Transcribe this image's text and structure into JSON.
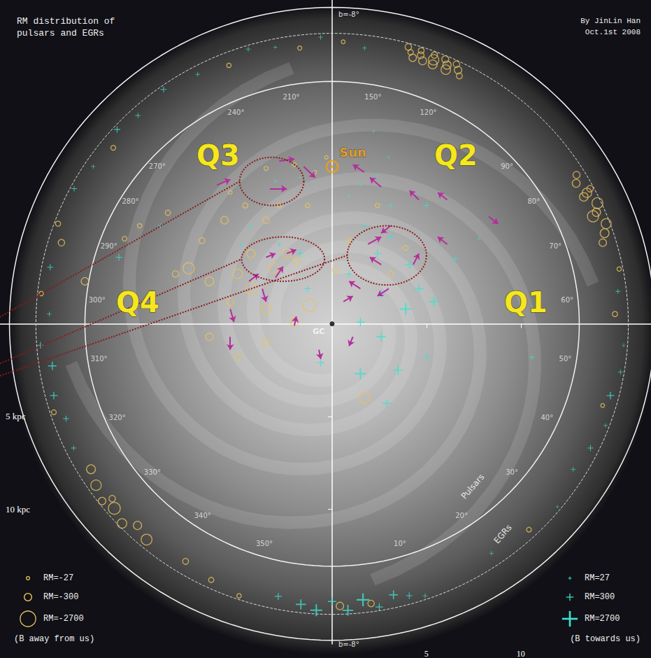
{
  "chart_data": {
    "type": "scatter",
    "title": "RM distribution of pulsars and EGRs",
    "credit": [
      "By JinLin Han",
      "Oct.1st 2008"
    ],
    "xlim": [
      -17.6,
      16.9
    ],
    "xticks": [
      5,
      10
    ],
    "ylim": [
      -17.5,
      17.3
    ],
    "yticks": [
      {
        "value": 5,
        "label": "5 kpc"
      },
      {
        "value": 10,
        "label": "10 kpc"
      }
    ],
    "grid": false,
    "legend": "bottom",
    "annotations": {
      "quadrants": [
        "Q1",
        "Q2",
        "Q3",
        "Q4"
      ],
      "rings": [
        "Pulsars",
        "EGRs"
      ],
      "latitude": [
        "b=-8°",
        "b=-8°"
      ]
    },
    "sun": {
      "label": "Sun",
      "x": 0,
      "y": -8.5
    },
    "gc": {
      "label": "GC",
      "x": 0,
      "y": 0
    },
    "longitude_labels": [
      {
        "value": 10,
        "label": "10°"
      },
      {
        "value": 20,
        "label": "20°"
      },
      {
        "value": 30,
        "label": "30°"
      },
      {
        "value": 40,
        "label": "40°"
      },
      {
        "value": 50,
        "label": "50°"
      },
      {
        "value": 60,
        "label": "60°"
      },
      {
        "value": 70,
        "label": "70°"
      },
      {
        "value": 80,
        "label": "80°"
      },
      {
        "value": 90,
        "label": "90°"
      },
      {
        "value": 120,
        "label": "120°"
      },
      {
        "value": 150,
        "label": "150°"
      },
      {
        "value": 210,
        "label": "210°"
      },
      {
        "value": 240,
        "label": "240°"
      },
      {
        "value": 270,
        "label": "270°"
      },
      {
        "value": 280,
        "label": "280°"
      },
      {
        "value": 290,
        "label": "290°"
      },
      {
        "value": 300,
        "label": "300°"
      },
      {
        "value": 310,
        "label": "310°"
      },
      {
        "value": 320,
        "label": "320°"
      },
      {
        "value": 330,
        "label": "330°"
      },
      {
        "value": 340,
        "label": "340°"
      },
      {
        "value": 350,
        "label": "350°"
      }
    ],
    "pulsars": {
      "x": [
        2.4,
        4.1,
        3.1,
        5.0,
        3.1,
        1.7,
        4.6,
        5.4,
        2.6,
        1.5,
        1.5,
        3.5,
        10.6,
        5.0,
        0.9,
        2.4,
        1.5,
        0.9,
        2.6,
        3.9,
        2.2,
        3.0,
        -1.7,
        -1.3,
        -2.8,
        -4.3,
        -3.0,
        -1.7,
        -4.8,
        -0.6,
        2.9,
        -11.3,
        -9.1,
        6.5,
        7.8,
        -2.4,
        -3.1,
        -1.9,
        -4.3,
        -5.0,
        -5.4,
        -4.3,
        -6.5,
        -7.6,
        -8.3,
        -6.9,
        -5.7,
        -4.6,
        -3.5,
        -2.8,
        -1.3,
        -2.0,
        -3.5,
        -5.4,
        -8.7,
        -10.2,
        -11.0,
        -13.1,
        -3.5,
        -2.0,
        1.7,
        -1.2,
        0.2,
        0.9,
        3.1,
        3.9,
        2.4,
        -6.5,
        -5.0,
        -3.5,
        -0.3,
        -0.9
      ],
      "y": [
        -3.8,
        -3.2,
        -4.7,
        -6.4,
        -6.4,
        -5.3,
        -1.9,
        -1.2,
        -1.6,
        -0.1,
        2.7,
        2.5,
        1.8,
        1.8,
        -2.7,
        -8.0,
        -7.5,
        -6.9,
        0.7,
        -0.8,
        -10.4,
        -9.0,
        -3.8,
        -1.9,
        -4.3,
        -5.3,
        -7.7,
        -7.9,
        -4.3,
        2.1,
        4.3,
        -3.6,
        -5.3,
        -3.5,
        -4.6,
        -3.8,
        -3.0,
        -3.4,
        -3.8,
        -2.7,
        -1.2,
        -1.9,
        -2.3,
        -3.0,
        -2.7,
        -4.5,
        -5.6,
        -6.4,
        -5.6,
        -6.4,
        -6.4,
        -8.6,
        -8.4,
        -7.1,
        -6.0,
        -5.3,
        -4.6,
        -2.3,
        -0.8,
        -0.1,
        4.0,
        -1.0,
        -2.9,
        -4.5,
        -2.7,
        -4.1,
        -6.4,
        0.7,
        1.8,
        1.0,
        -9.0,
        -8.2
      ],
      "rm": [
        300,
        400,
        200,
        150,
        100,
        150,
        500,
        800,
        300,
        400,
        1000,
        700,
        100,
        200,
        200,
        50,
        40,
        60,
        600,
        1200,
        30,
        40,
        300,
        200,
        100,
        80,
        60,
        40,
        100,
        300,
        400,
        200,
        80,
        150,
        60,
        -500,
        -700,
        -300,
        -400,
        -600,
        -300,
        -900,
        -500,
        -1000,
        -200,
        -150,
        -300,
        -100,
        -200,
        -80,
        -60,
        -40,
        -50,
        -40,
        -100,
        -60,
        -80,
        -300,
        -700,
        -400,
        -1000,
        -1500,
        -200,
        -100,
        -100,
        -80,
        -60,
        -300,
        -200,
        -400,
        -30,
        -30
      ]
    },
    "egrs": {
      "longitude": [
        126,
        128,
        130,
        131,
        132,
        134,
        136,
        137,
        138,
        140,
        142,
        143,
        144,
        146,
        148,
        74,
        76,
        78,
        79,
        80,
        82,
        83,
        84,
        85,
        86,
        88,
        58,
        62,
        66,
        70,
        38,
        42,
        46,
        48,
        50,
        54,
        22,
        28,
        33,
        353,
        356,
        358,
        0,
        1,
        2,
        4,
        5,
        6,
        8,
        10,
        12,
        340,
        344,
        348,
        322,
        324,
        326,
        327,
        328,
        330,
        332,
        334,
        302,
        306,
        310,
        312,
        314,
        318,
        282,
        286,
        290,
        294,
        298,
        255,
        260,
        265,
        270,
        275,
        165,
        175,
        185,
        195,
        205,
        215,
        225,
        235,
        245
      ],
      "rm": [
        -150,
        -300,
        -200,
        -600,
        -400,
        -250,
        -500,
        -800,
        -180,
        -350,
        -220,
        -150,
        -300,
        -120,
        -200,
        -300,
        -500,
        -700,
        -1000,
        -400,
        -900,
        -450,
        -600,
        -200,
        -350,
        -250,
        50,
        -100,
        80,
        -60,
        80,
        150,
        60,
        -40,
        300,
        100,
        60,
        -80,
        40,
        250,
        700,
        1200,
        400,
        -300,
        900,
        1500,
        -200,
        300,
        500,
        200,
        100,
        -150,
        -100,
        -60,
        -500,
        -800,
        -300,
        -200,
        -1200,
        -600,
        -400,
        -900,
        200,
        400,
        300,
        -80,
        150,
        100,
        -100,
        -200,
        150,
        -60,
        80,
        100,
        200,
        -80,
        60,
        120,
        60,
        -40,
        80,
        -50,
        40,
        100,
        -60,
        80,
        150
      ]
    },
    "field_arrows": {
      "color": "#b42e9c",
      "segments": [
        [
          -6.1,
          -7.5,
          -5.4,
          -7.8
        ],
        [
          -3.3,
          -7.3,
          -2.4,
          -7.3
        ],
        [
          -2.8,
          -8.8,
          -2.0,
          -8.9
        ],
        [
          -1.5,
          -8.5,
          -0.9,
          -7.9
        ],
        [
          1.7,
          -8.2,
          1.1,
          -8.6
        ],
        [
          2.6,
          -7.4,
          2.0,
          -7.9
        ],
        [
          4.6,
          -6.7,
          4.1,
          -7.2
        ],
        [
          6.1,
          -6.7,
          5.6,
          -7.1
        ],
        [
          8.3,
          -5.8,
          8.8,
          -5.4
        ],
        [
          3.1,
          -5.3,
          2.6,
          -4.9
        ],
        [
          1.9,
          -4.3,
          2.6,
          -4.7
        ],
        [
          2.6,
          -3.2,
          2.0,
          -3.6
        ],
        [
          4.3,
          -3.2,
          4.6,
          -3.8
        ],
        [
          1.5,
          -1.9,
          0.9,
          -2.3
        ],
        [
          0.6,
          -1.2,
          1.1,
          -1.5
        ],
        [
          -3.5,
          -3.6,
          -3.0,
          -3.8
        ],
        [
          -2.4,
          -3.8,
          -1.9,
          -4.0
        ],
        [
          -3.0,
          -2.5,
          -2.6,
          -3.1
        ],
        [
          -4.4,
          -2.3,
          -3.9,
          -2.7
        ],
        [
          -3.7,
          -1.9,
          -3.5,
          -1.2
        ],
        [
          -5.4,
          -0.8,
          -5.2,
          -0.1
        ],
        [
          -5.4,
          0.7,
          -5.4,
          1.4
        ],
        [
          -2.0,
          0.1,
          -1.9,
          -0.4
        ],
        [
          -0.7,
          1.4,
          -0.6,
          1.9
        ],
        [
          1.1,
          0.7,
          0.9,
          1.2
        ],
        [
          6.1,
          -4.3,
          5.6,
          -4.7
        ],
        [
          3.0,
          -1.9,
          2.4,
          -1.5
        ]
      ]
    },
    "size_legend": {
      "negative": {
        "values": [
          -27,
          -300,
          -2700
        ],
        "labels": [
          "RM=-27",
          "RM=-300",
          "RM=-2700"
        ],
        "note": "(B away from us)",
        "color": "#e8c25c",
        "marker": "circle"
      },
      "positive": {
        "values": [
          27,
          300,
          2700
        ],
        "labels": [
          "RM=27",
          "RM=300",
          "RM=2700"
        ],
        "note": "(B towards us)",
        "color": "#3ee0cf",
        "marker": "cross"
      }
    }
  }
}
